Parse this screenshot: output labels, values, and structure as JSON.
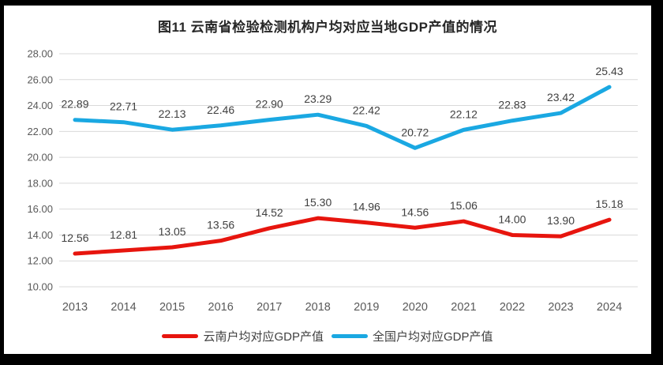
{
  "frame": {
    "border_color": "#000000",
    "panel_background": "#ffffff"
  },
  "chart_data": {
    "type": "line",
    "title": "图11 云南省检验检测机构户均对应当地GDP产值的情况",
    "categories": [
      "2013",
      "2014",
      "2015",
      "2016",
      "2017",
      "2018",
      "2019",
      "2020",
      "2021",
      "2022",
      "2023",
      "2024"
    ],
    "series": [
      {
        "name": "云南户均对应GDP产值",
        "color": "#e7150e",
        "values": [
          12.56,
          12.81,
          13.05,
          13.56,
          14.52,
          15.3,
          14.96,
          14.56,
          15.06,
          14.0,
          13.9,
          15.18
        ],
        "labels": [
          "12.56",
          "12.81",
          "13.05",
          "13.56",
          "14.52",
          "15.30",
          "14.96",
          "14.56",
          "15.06",
          "14.00",
          "13.90",
          "15.18"
        ]
      },
      {
        "name": "全国户均对应GDP产值",
        "color": "#1aa8e2",
        "values": [
          22.89,
          22.71,
          22.13,
          22.46,
          22.9,
          23.29,
          22.42,
          20.72,
          22.12,
          22.83,
          23.42,
          25.43
        ],
        "labels": [
          "22.89",
          "22.71",
          "22.13",
          "22.46",
          "22.90",
          "23.29",
          "22.42",
          "20.72",
          "22.12",
          "22.83",
          "23.42",
          "25.43"
        ]
      }
    ],
    "ylim": [
      10,
      28
    ],
    "yticks": [
      "28.00",
      "26.00",
      "24.00",
      "22.00",
      "20.00",
      "18.00",
      "16.00",
      "14.00",
      "12.00",
      "10.00"
    ],
    "grid": true,
    "legend_position": "bottom",
    "style": {
      "gridline_color": "#d9d9d9",
      "tick_label_color": "#595959",
      "data_label_color": "#404040",
      "title_color": "#262626",
      "line_width": 5
    }
  }
}
